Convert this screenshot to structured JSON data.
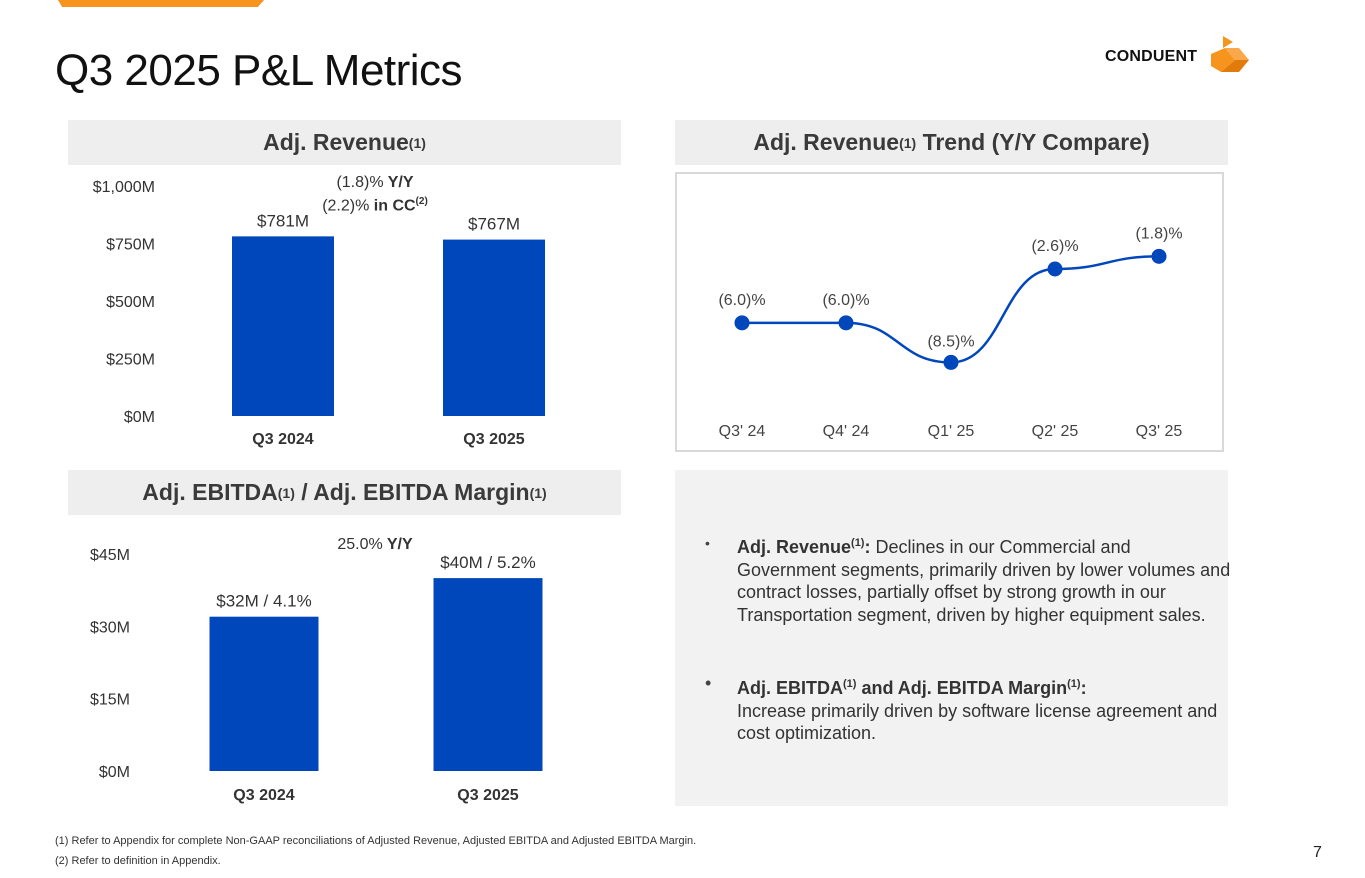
{
  "page": {
    "title": "Q3 2025 P&L Metrics",
    "page_number": "7",
    "brand_name": "CONDUENT",
    "accent_color": "#f7941d",
    "bar_color": "#0047bb"
  },
  "panels": {
    "revenue_head": {
      "label": "Adj. Revenue",
      "sup": "(1)"
    },
    "trend_head": {
      "label_a": "Adj. Revenue",
      "sup": "(1)",
      "label_b": " Trend (Y/Y Compare)"
    },
    "ebitda_head": {
      "label_a": "Adj. EBITDA",
      "sup_a": "(1)",
      "label_b": " / Adj. EBITDA Margin",
      "sup_b": "(1)"
    }
  },
  "annotations": {
    "revenue_yy_value": "(1.8)%",
    "revenue_yy_label": " Y/Y",
    "revenue_cc_value": "(2.2)%",
    "revenue_cc_label": " in CC",
    "revenue_cc_sup": "(2)",
    "ebitda_yy_value": "25.0%",
    "ebitda_yy_label": " Y/Y"
  },
  "commentary": {
    "bullet1_title": "Adj. Revenue",
    "bullet1_sup": "(1)",
    "bullet1_colon": ":",
    "bullet1_text": " Declines in our Commercial and Government segments, primarily driven by lower volumes and contract losses, partially offset by strong growth in our Transportation segment, driven by higher equipment sales.",
    "bullet2_title_a": "Adj. EBITDA",
    "bullet2_sup_a": "(1)",
    "bullet2_title_b": " and Adj. EBITDA Margin",
    "bullet2_sup_b": "(1)",
    "bullet2_colon": ":",
    "bullet2_text": "Increase primarily driven by software license agreement and cost optimization.",
    "bullet_symbol": "•"
  },
  "footnotes": {
    "note1": "(1) Refer to Appendix for complete Non-GAAP reconciliations of Adjusted Revenue, Adjusted EBITDA and Adjusted EBITDA Margin.",
    "note2": "(2) Refer to definition in Appendix."
  },
  "chart_data": [
    {
      "id": "revenue",
      "type": "bar",
      "title": "Adj. Revenue(1)",
      "categories": [
        "Q3 2024",
        "Q3 2025"
      ],
      "values": [
        781,
        767
      ],
      "value_labels": [
        "$781M",
        "$767M"
      ],
      "ylim": [
        0,
        1000
      ],
      "yticks": [
        0,
        250,
        500,
        750,
        1000
      ],
      "ytick_labels": [
        "$0M",
        "$250M",
        "$500M",
        "$750M",
        "$1,000M"
      ],
      "ylabel": "",
      "xlabel": ""
    },
    {
      "id": "trend",
      "type": "line",
      "title": "Adj. Revenue(1) Trend (Y/Y Compare)",
      "categories": [
        "Q3' 24",
        "Q4' 24",
        "Q1' 25",
        "Q2' 25",
        "Q3' 25"
      ],
      "values": [
        -6.0,
        -6.0,
        -8.5,
        -2.6,
        -1.8
      ],
      "value_labels": [
        "(6.0)%",
        "(6.0)%",
        "(8.5)%",
        "(2.6)%",
        "(1.8)%"
      ],
      "ylim": [
        -11,
        1
      ]
    },
    {
      "id": "ebitda",
      "type": "bar",
      "title": "Adj. EBITDA(1) / Adj. EBITDA Margin(1)",
      "categories": [
        "Q3 2024",
        "Q3 2025"
      ],
      "values": [
        32,
        40
      ],
      "margins_pct": [
        4.1,
        5.2
      ],
      "value_labels": [
        "$32M / 4.1%",
        "$40M / 5.2%"
      ],
      "ylim": [
        0,
        45
      ],
      "yticks": [
        0,
        15,
        30,
        45
      ],
      "ytick_labels": [
        "$0M",
        "$15M",
        "$30M",
        "$45M"
      ],
      "ylabel": "",
      "xlabel": ""
    }
  ]
}
